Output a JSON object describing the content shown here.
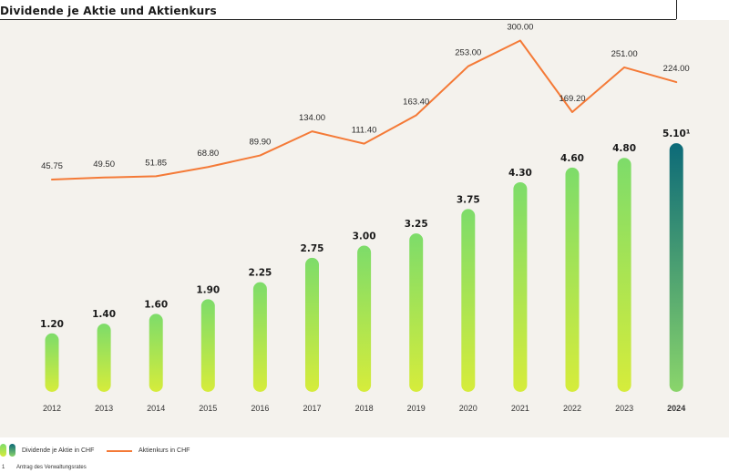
{
  "title": "Dividende je Aktie und Aktienkurs",
  "chart_data": {
    "type": "bar",
    "categories": [
      "2012",
      "2013",
      "2014",
      "2015",
      "2016",
      "2017",
      "2018",
      "2019",
      "2020",
      "2021",
      "2022",
      "2023",
      "2024"
    ],
    "series": [
      {
        "name": "Dividende je Aktie in CHF",
        "type": "bar",
        "values": [
          1.2,
          1.4,
          1.6,
          1.9,
          2.25,
          2.75,
          3.0,
          3.25,
          3.75,
          4.3,
          4.6,
          4.8,
          5.1
        ],
        "labels": [
          "1.20",
          "1.40",
          "1.60",
          "1.90",
          "2.25",
          "2.75",
          "3.00",
          "3.25",
          "3.75",
          "4.30",
          "4.60",
          "4.80",
          "5.10¹"
        ],
        "colors": {
          "gradient_top": "#7ddc6a",
          "gradient_bottom": "#d6ec3b",
          "highlight_top": "#0c6a78",
          "highlight_bottom": "#8ad56b"
        }
      },
      {
        "name": "Aktienkurs in CHF",
        "type": "line",
        "values": [
          45.75,
          49.5,
          51.85,
          68.8,
          89.9,
          134.0,
          111.4,
          163.4,
          253.0,
          300.0,
          169.2,
          251.0,
          224.0
        ],
        "labels": [
          "45.75",
          "49.50",
          "51.85",
          "68.80",
          "89.90",
          "134.00",
          "111.40",
          "163.40",
          "253.00",
          "300.00",
          "169.20",
          "251.00",
          "224.00"
        ],
        "color": "#f47a37"
      }
    ],
    "highlight_category": "2024",
    "grid": false,
    "legend_position": "bottom-left"
  },
  "legend": {
    "dividend_label": "Dividende je Aktie in CHF",
    "price_label": "Aktienkurs in CHF"
  },
  "footnote": {
    "number": "1",
    "text": "Antrag des Verwaltungsrates"
  }
}
